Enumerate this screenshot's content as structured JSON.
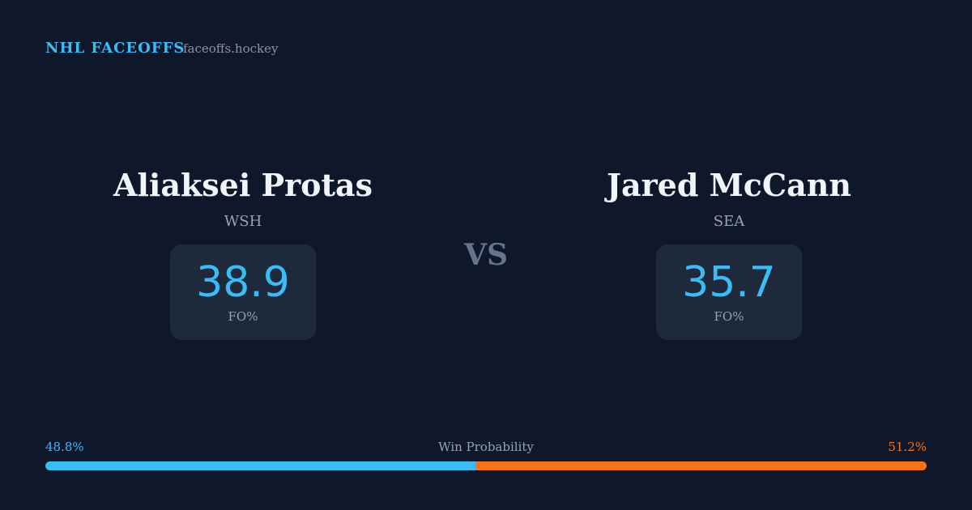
{
  "header": {
    "brand": "NHL FACEOFFS",
    "site": "faceoffs.hockey"
  },
  "players": [
    {
      "name": "Aliaksei Protas",
      "team": "WSH",
      "stat": "38.9",
      "stat_label": "FO%"
    },
    {
      "name": "Jared McCann",
      "team": "SEA",
      "stat": "35.7",
      "stat_label": "FO%"
    }
  ],
  "versus": "VS",
  "win_probability": {
    "label": "Win Probability",
    "left": {
      "value": 48.8,
      "label": "48.8%",
      "color": "#38bdf8"
    },
    "right": {
      "value": 51.2,
      "label": "51.2%",
      "color": "#f97316"
    }
  }
}
